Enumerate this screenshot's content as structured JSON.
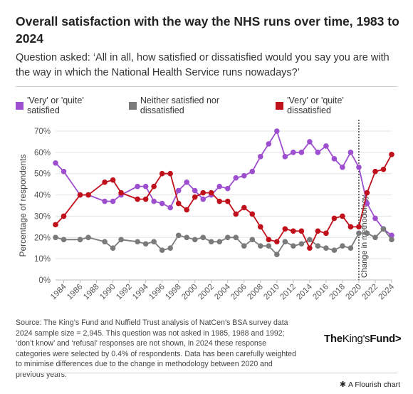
{
  "title": "Overall satisfaction with the way the NHS runs over time, 1983 to 2024",
  "subtitle": "Question asked: ‘All in all, how satisfied or dissatisfied would you say you are with the way in which the National Health Service runs nowadays?’",
  "legend": [
    {
      "label": "'Very' or 'quite' satisfied",
      "color": "#9d4fcf"
    },
    {
      "label": "Neither satisfied nor dissatisfied",
      "color": "#7a7a7a"
    },
    {
      "label": "'Very' or 'quite' dissatisfied",
      "color": "#c0101b"
    }
  ],
  "source": "Source: The King’s Fund and Nuffield Trust analysis of NatCen’s BSA survey data 2024 sample size = 2,945. This question was not asked in 1985, 1988 and 1992; ‘don’t know’ and ‘refusal’ responses are not shown, in 2024 these response categories were selected by 0.4% of respondents. Data has been carefully weighted to minimise differences due to the change in methodology between 2020 and previous years.",
  "logo": {
    "part1": "The",
    "part2": "King's",
    "part3": "Fund",
    "symbol": ">"
  },
  "flourish": {
    "icon": "✱",
    "label": "A Flourish chart"
  },
  "chart_data": {
    "type": "line",
    "xlabel": "",
    "ylabel": "Percentage of respondents",
    "xlim": [
      1983,
      2024
    ],
    "ylim": [
      0,
      70
    ],
    "yticks": [
      0,
      10,
      20,
      30,
      40,
      50,
      60,
      70
    ],
    "ytick_labels": [
      "0%",
      "10%",
      "20%",
      "30%",
      "40%",
      "50%",
      "60%",
      "70%"
    ],
    "xticks": [
      1984,
      1986,
      1988,
      1990,
      1992,
      1994,
      1996,
      1998,
      2000,
      2002,
      2004,
      2006,
      2008,
      2010,
      2012,
      2014,
      2016,
      2018,
      2020,
      2022,
      2024
    ],
    "grid": true,
    "annotation": {
      "x": 2020,
      "label": "Change in methodology"
    },
    "series": [
      {
        "name": "'Very' or 'quite' satisfied",
        "color": "#9d4fcf",
        "points": [
          [
            1983,
            55
          ],
          [
            1984,
            51
          ],
          [
            1986,
            40
          ],
          [
            1987,
            40
          ],
          [
            1989,
            37
          ],
          [
            1990,
            37
          ],
          [
            1991,
            40
          ],
          [
            1993,
            44
          ],
          [
            1994,
            44
          ],
          [
            1995,
            37
          ],
          [
            1996,
            36
          ],
          [
            1997,
            34
          ],
          [
            1998,
            42
          ],
          [
            1999,
            46
          ],
          [
            2000,
            42
          ],
          [
            2001,
            38
          ],
          [
            2002,
            40
          ],
          [
            2003,
            44
          ],
          [
            2004,
            43
          ],
          [
            2005,
            48
          ],
          [
            2006,
            49
          ],
          [
            2007,
            51
          ],
          [
            2008,
            58
          ],
          [
            2009,
            64
          ],
          [
            2010,
            70
          ],
          [
            2011,
            58
          ],
          [
            2012,
            60
          ],
          [
            2013,
            60
          ],
          [
            2014,
            65
          ],
          [
            2015,
            60
          ],
          [
            2016,
            63
          ],
          [
            2017,
            57
          ],
          [
            2018,
            53
          ],
          [
            2019,
            60
          ],
          [
            2020,
            53
          ],
          [
            2021,
            36
          ],
          [
            2022,
            29
          ],
          [
            2023,
            24
          ],
          [
            2024,
            21
          ]
        ]
      },
      {
        "name": "Neither satisfied nor dissatisfied",
        "color": "#7a7a7a",
        "points": [
          [
            1983,
            20
          ],
          [
            1984,
            19
          ],
          [
            1986,
            19
          ],
          [
            1987,
            20
          ],
          [
            1989,
            18
          ],
          [
            1990,
            15
          ],
          [
            1991,
            19
          ],
          [
            1993,
            18
          ],
          [
            1994,
            17
          ],
          [
            1995,
            18
          ],
          [
            1996,
            14
          ],
          [
            1997,
            15
          ],
          [
            1998,
            21
          ],
          [
            1999,
            20
          ],
          [
            2000,
            19
          ],
          [
            2001,
            20
          ],
          [
            2002,
            18
          ],
          [
            2003,
            18
          ],
          [
            2004,
            20
          ],
          [
            2005,
            20
          ],
          [
            2006,
            16
          ],
          [
            2007,
            19
          ],
          [
            2008,
            16
          ],
          [
            2009,
            16
          ],
          [
            2010,
            12
          ],
          [
            2011,
            18
          ],
          [
            2012,
            16
          ],
          [
            2013,
            17
          ],
          [
            2014,
            19
          ],
          [
            2015,
            16
          ],
          [
            2016,
            15
          ],
          [
            2017,
            14
          ],
          [
            2018,
            16
          ],
          [
            2019,
            15
          ],
          [
            2020,
            22
          ],
          [
            2021,
            22
          ],
          [
            2022,
            20
          ],
          [
            2023,
            24
          ],
          [
            2024,
            19
          ]
        ]
      },
      {
        "name": "'Very' or 'quite' dissatisfied",
        "color": "#c0101b",
        "points": [
          [
            1983,
            26
          ],
          [
            1984,
            30
          ],
          [
            1986,
            40
          ],
          [
            1987,
            40
          ],
          [
            1989,
            46
          ],
          [
            1990,
            47
          ],
          [
            1991,
            41
          ],
          [
            1993,
            38
          ],
          [
            1994,
            38
          ],
          [
            1995,
            44
          ],
          [
            1996,
            50
          ],
          [
            1997,
            50
          ],
          [
            1998,
            36
          ],
          [
            1999,
            33
          ],
          [
            2000,
            39
          ],
          [
            2001,
            41
          ],
          [
            2002,
            41
          ],
          [
            2003,
            37
          ],
          [
            2004,
            37
          ],
          [
            2005,
            31
          ],
          [
            2006,
            34
          ],
          [
            2007,
            31
          ],
          [
            2008,
            25
          ],
          [
            2009,
            19
          ],
          [
            2010,
            18
          ],
          [
            2011,
            24
          ],
          [
            2012,
            23
          ],
          [
            2013,
            23
          ],
          [
            2014,
            15
          ],
          [
            2015,
            23
          ],
          [
            2016,
            22
          ],
          [
            2017,
            29
          ],
          [
            2018,
            30
          ],
          [
            2019,
            25
          ],
          [
            2020,
            25
          ],
          [
            2021,
            41
          ],
          [
            2022,
            51
          ],
          [
            2023,
            52
          ],
          [
            2024,
            59
          ]
        ]
      }
    ]
  }
}
